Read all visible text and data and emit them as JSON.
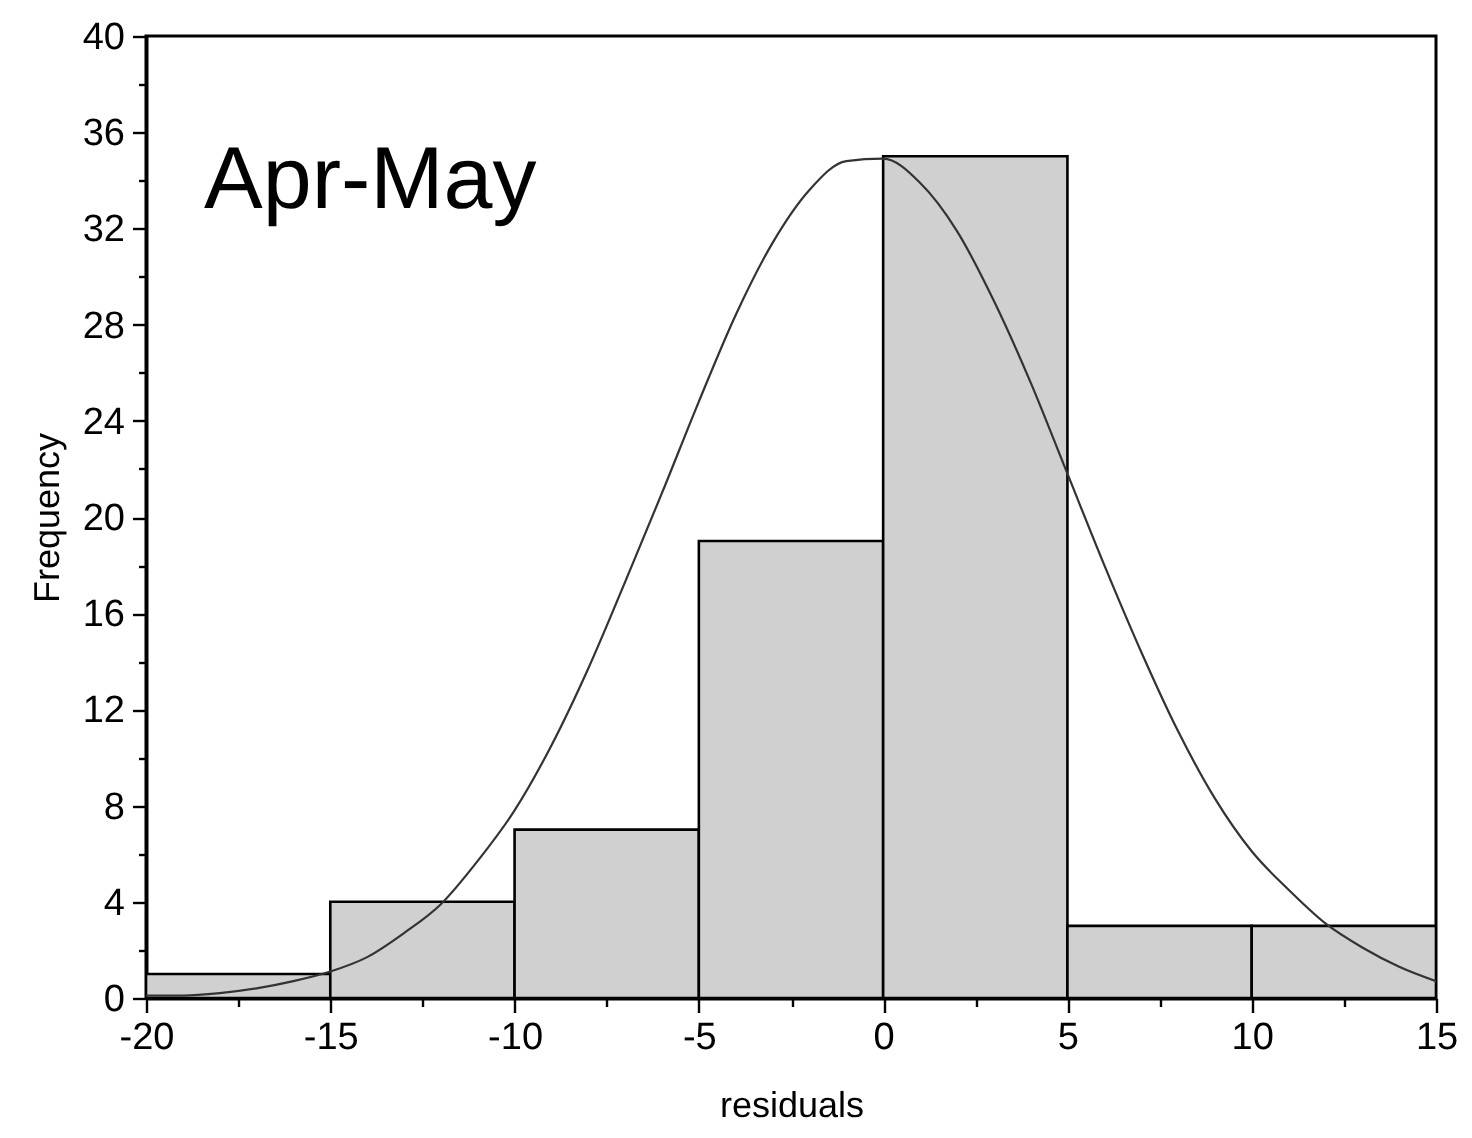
{
  "chart_data": {
    "type": "histogram",
    "xlabel": "residuals",
    "ylabel": "Frequency",
    "annotations": [
      "Apr-May"
    ],
    "bins": [
      -20,
      -15,
      -10,
      -5,
      0,
      5,
      10,
      15
    ],
    "values": [
      1,
      4,
      7,
      19,
      35,
      3,
      3
    ],
    "color": "#d0d0d0",
    "series": [
      {
        "type": "line",
        "color": "#333333",
        "x": [
          -20,
          -19,
          -18,
          -17,
          -16,
          -15,
          -14,
          -13,
          -12,
          -11,
          -10,
          -9,
          -8,
          -7,
          -6,
          -5,
          -4,
          -3,
          -2,
          -1,
          0,
          1,
          2,
          3,
          4,
          5,
          6,
          7,
          8,
          9,
          10,
          11,
          12,
          13,
          14,
          15
        ],
        "values": [
          0.1,
          0.1,
          0.2,
          0.4,
          0.7,
          1.1,
          1.7,
          2.7,
          3.9,
          5.7,
          7.8,
          10.5,
          13.7,
          17.3,
          21.0,
          24.8,
          28.4,
          31.4,
          33.6,
          34.8,
          34.9,
          33.9,
          31.9,
          29.0,
          25.6,
          21.8,
          18.0,
          14.4,
          11.1,
          8.3,
          6.1,
          4.5,
          3.1,
          2.1,
          1.3,
          0.7
        ]
      }
    ],
    "xlim": [
      -20,
      15
    ],
    "xticks": [
      -20,
      {
        "value": -17.5,
        "label": null
      },
      -15,
      {
        "value": -12.5,
        "label": null
      },
      -10,
      {
        "value": -7.5,
        "label": null
      },
      -5,
      {
        "value": -2.5,
        "label": null
      },
      0,
      {
        "value": 2.5,
        "label": null
      },
      5,
      {
        "value": 7.5,
        "label": null
      },
      10,
      {
        "value": 12.5,
        "label": null
      },
      15
    ],
    "ylim": [
      0,
      40
    ],
    "yticks": [
      0,
      {
        "value": 2,
        "label": null
      },
      4,
      {
        "value": 6,
        "label": null
      },
      8,
      {
        "value": 10,
        "label": null
      },
      12,
      {
        "value": 14,
        "label": null
      },
      16,
      {
        "value": 18,
        "label": null
      },
      20,
      {
        "value": 22,
        "label": null
      },
      24,
      {
        "value": 26,
        "label": null
      },
      28,
      {
        "value": 30,
        "label": null
      },
      32,
      {
        "value": 34,
        "label": null
      },
      36,
      {
        "value": 38,
        "label": null
      },
      40
    ]
  }
}
